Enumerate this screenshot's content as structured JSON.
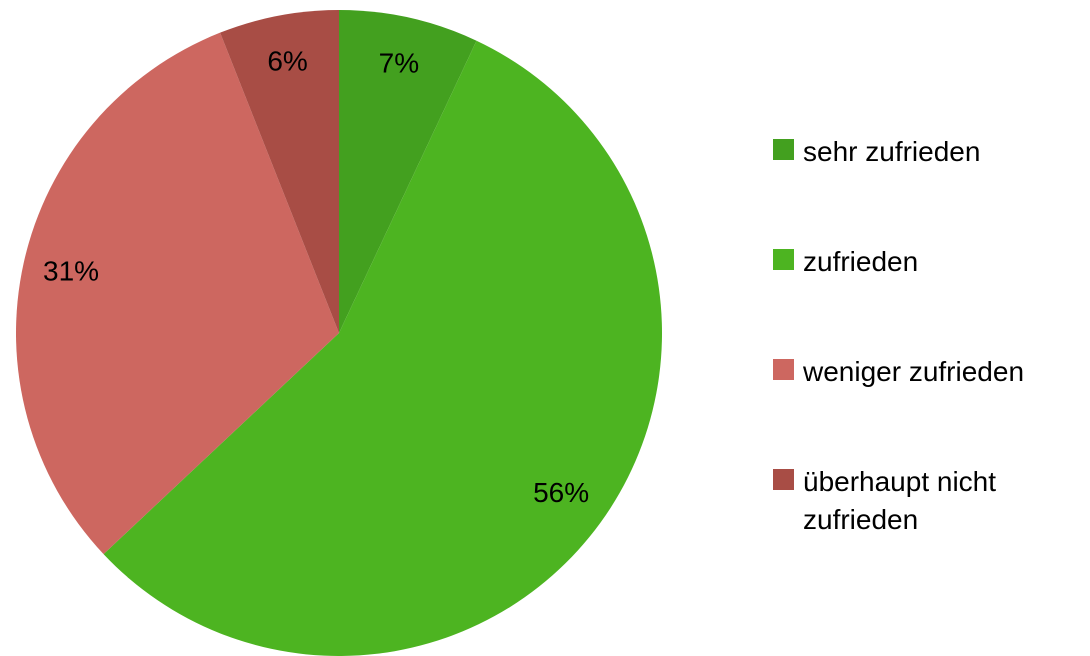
{
  "chart_data": {
    "type": "pie",
    "categories": [
      "sehr zufrieden",
      "zufrieden",
      "weniger zufrieden",
      "überhaupt nicht zufrieden"
    ],
    "values": [
      7,
      56,
      31,
      6
    ],
    "value_labels": [
      "7%",
      "56%",
      "31%",
      "6%"
    ],
    "colors": [
      "#43a01f",
      "#4db421",
      "#cd6760",
      "#a84d45"
    ],
    "legend": "right"
  }
}
